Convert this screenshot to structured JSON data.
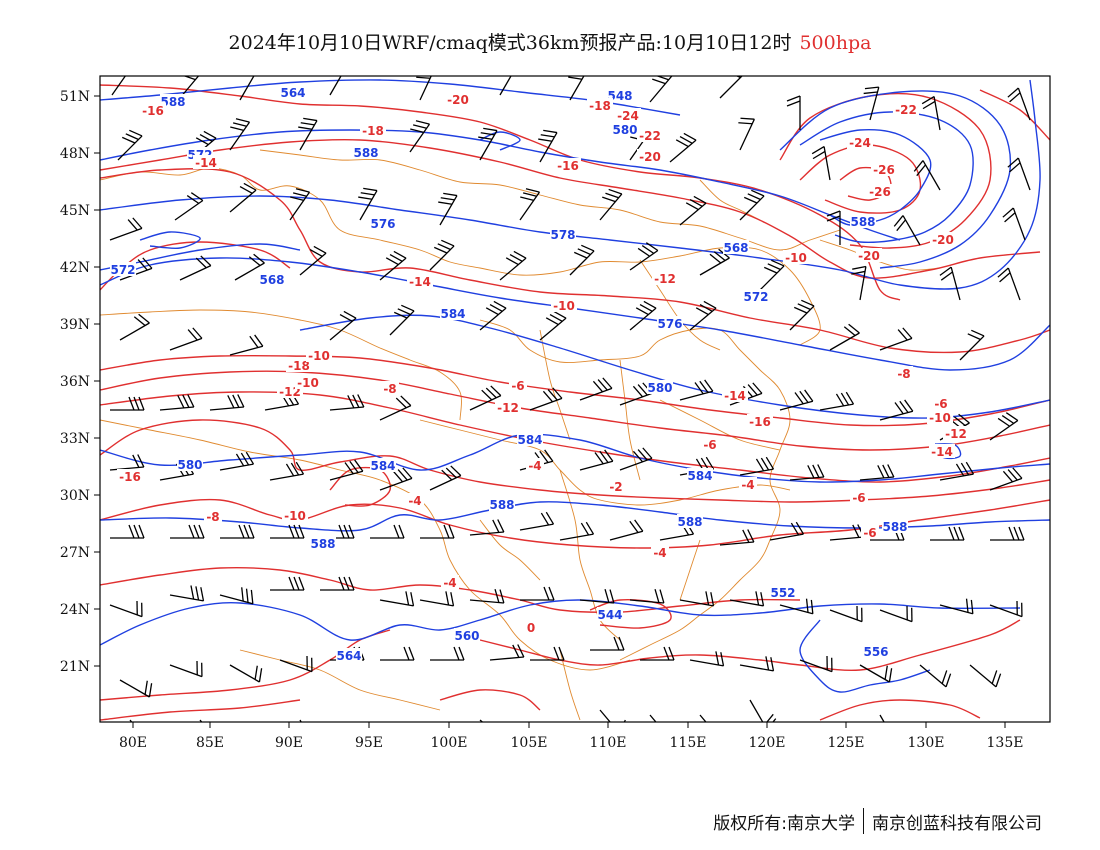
{
  "title": {
    "main": "2024年10月10日WRF/cmaq模式36km预报产品:10月10日12时",
    "level": "500hpa",
    "level_color": "#e03030"
  },
  "map": {
    "lon_range": [
      78,
      138
    ],
    "lat_range": [
      17,
      52
    ],
    "x_ticks": [
      "80E",
      "85E",
      "90E",
      "95E",
      "100E",
      "105E",
      "110E",
      "115E",
      "120E",
      "125E",
      "130E",
      "135E"
    ],
    "y_ticks": [
      "51N",
      "48N",
      "45N",
      "42N",
      "39N",
      "36N",
      "33N",
      "30N",
      "27N",
      "24N",
      "21N"
    ],
    "height_contour_color": "#2040e0",
    "temperature_contour_color": "#e03030",
    "boundary_color": "#e08a30",
    "wind_barb_color": "#000000",
    "height_labels": [
      "588",
      "564",
      "572",
      "588",
      "576",
      "578",
      "572",
      "568",
      "584",
      "568",
      "572",
      "576",
      "580",
      "580",
      "584",
      "584",
      "584",
      "588",
      "588",
      "588",
      "588",
      "544",
      "552",
      "556",
      "560",
      "564",
      "548",
      "588",
      "580"
    ],
    "temperature_labels": [
      "-16",
      "-14",
      "-20",
      "-18",
      "-16",
      "-26",
      "-24",
      "-22",
      "-20",
      "-18",
      "-22",
      "-24",
      "-26",
      "-20",
      "-20",
      "-14",
      "-12",
      "-10",
      "-10",
      "-8",
      "-6",
      "-6",
      "-12",
      "-14",
      "-16",
      "-10",
      "-12",
      "-14",
      "-16",
      "-18",
      "-10",
      "-12",
      "-10",
      "-8",
      "-6",
      "-4",
      "-2",
      "-6",
      "-4",
      "-4",
      "-8",
      "-10",
      "-6",
      "-4",
      "-4",
      "0"
    ]
  },
  "footer": {
    "left": "版权所有:南京大学",
    "right": "南京创蓝科技有限公司"
  }
}
